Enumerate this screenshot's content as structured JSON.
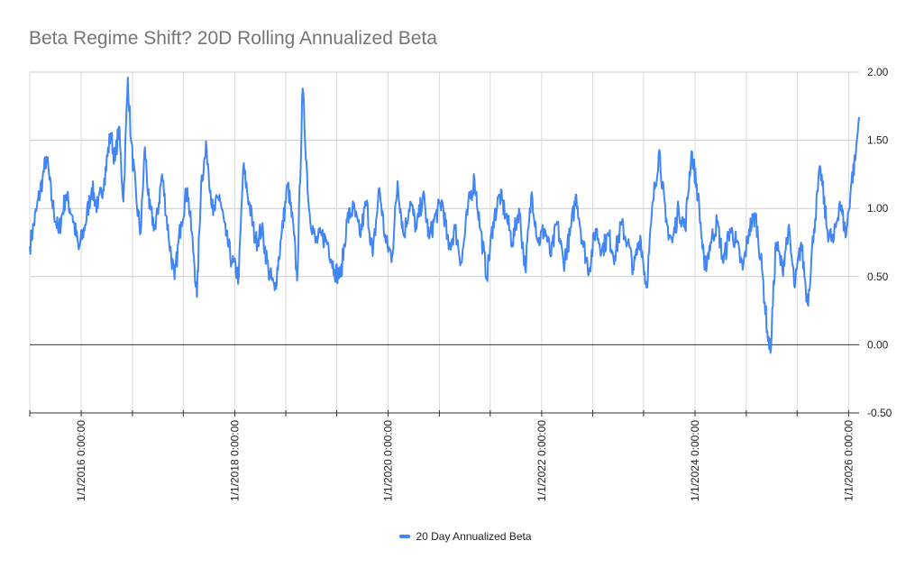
{
  "chart_data": {
    "type": "line",
    "title": "Beta Regime Shift? 20D Rolling Annualized Beta",
    "xlabel": "",
    "ylabel": "",
    "ylim": [
      -0.5,
      2.0
    ],
    "xlim": [
      "2015-05-01",
      "2026-02-20"
    ],
    "y_ticks": [
      "2.00",
      "1.50",
      "1.00",
      "0.50",
      "0.00",
      "-0.50"
    ],
    "y_tick_values": [
      2.0,
      1.5,
      1.0,
      0.5,
      0.0,
      -0.5
    ],
    "x_tick_labels": [
      "1/1/2016 0:00:00",
      "1/1/2018 0:00:00",
      "1/1/2020 0:00:00",
      "1/1/2022 0:00:00",
      "1/1/2024 0:00:00",
      "1/1/2026 0:00:00"
    ],
    "x_tick_dates": [
      "2016-01-01",
      "2018-01-01",
      "2020-01-01",
      "2022-01-01",
      "2024-01-01",
      "2026-01-01"
    ],
    "x_minor_ticks": [
      "2015-05-01",
      "2016-01-01",
      "2016-09-01",
      "2017-05-01",
      "2018-01-01",
      "2018-09-01",
      "2019-05-01",
      "2020-01-01",
      "2020-09-01",
      "2021-05-01",
      "2022-01-01",
      "2022-09-01",
      "2023-05-01",
      "2024-01-01",
      "2024-09-01",
      "2025-05-01",
      "2026-01-01"
    ],
    "grid": true,
    "legend_position": "bottom",
    "series": [
      {
        "name": "20 Day Annualized Beta",
        "color": "#4285f4",
        "points": [
          [
            "2015-05-01",
            0.72
          ],
          [
            "2015-06-01",
            0.98
          ],
          [
            "2015-07-01",
            1.22
          ],
          [
            "2015-07-20",
            1.38
          ],
          [
            "2015-08-15",
            1.05
          ],
          [
            "2015-09-15",
            0.82
          ],
          [
            "2015-10-20",
            1.1
          ],
          [
            "2015-11-20",
            0.95
          ],
          [
            "2015-12-20",
            0.7
          ],
          [
            "2016-01-20",
            0.88
          ],
          [
            "2016-02-20",
            1.15
          ],
          [
            "2016-03-20",
            1.0
          ],
          [
            "2016-04-20",
            1.22
          ],
          [
            "2016-05-20",
            1.55
          ],
          [
            "2016-06-10",
            1.35
          ],
          [
            "2016-06-28",
            1.6
          ],
          [
            "2016-07-20",
            1.05
          ],
          [
            "2016-08-10",
            1.96
          ],
          [
            "2016-08-25",
            1.5
          ],
          [
            "2016-09-20",
            1.05
          ],
          [
            "2016-10-10",
            0.82
          ],
          [
            "2016-10-30",
            1.45
          ],
          [
            "2016-11-20",
            1.0
          ],
          [
            "2016-12-20",
            0.85
          ],
          [
            "2017-01-20",
            1.25
          ],
          [
            "2017-02-20",
            0.8
          ],
          [
            "2017-03-20",
            0.48
          ],
          [
            "2017-04-20",
            0.9
          ],
          [
            "2017-05-20",
            1.15
          ],
          [
            "2017-06-20",
            0.65
          ],
          [
            "2017-07-05",
            0.35
          ],
          [
            "2017-07-25",
            1.2
          ],
          [
            "2017-08-20",
            1.44
          ],
          [
            "2017-09-20",
            0.95
          ],
          [
            "2017-10-20",
            1.1
          ],
          [
            "2017-11-20",
            0.8
          ],
          [
            "2017-12-20",
            0.6
          ],
          [
            "2018-01-20",
            0.5
          ],
          [
            "2018-02-10",
            1.3
          ],
          [
            "2018-03-10",
            1.05
          ],
          [
            "2018-04-10",
            0.75
          ],
          [
            "2018-05-10",
            0.85
          ],
          [
            "2018-06-10",
            0.55
          ],
          [
            "2018-07-10",
            0.4
          ],
          [
            "2018-08-10",
            0.78
          ],
          [
            "2018-09-10",
            1.18
          ],
          [
            "2018-10-10",
            0.8
          ],
          [
            "2018-10-25",
            0.47
          ],
          [
            "2018-11-20",
            1.88
          ],
          [
            "2018-12-20",
            1.0
          ],
          [
            "2019-01-20",
            0.75
          ],
          [
            "2019-02-20",
            0.8
          ],
          [
            "2019-03-20",
            0.75
          ],
          [
            "2019-04-20",
            0.55
          ],
          [
            "2019-05-20",
            0.5
          ],
          [
            "2019-06-20",
            0.92
          ],
          [
            "2019-07-20",
            1.0
          ],
          [
            "2019-08-20",
            0.8
          ],
          [
            "2019-09-20",
            1.05
          ],
          [
            "2019-10-20",
            0.65
          ],
          [
            "2019-11-20",
            1.15
          ],
          [
            "2019-12-20",
            0.75
          ],
          [
            "2020-01-20",
            0.65
          ],
          [
            "2020-02-15",
            1.2
          ],
          [
            "2020-03-15",
            0.8
          ],
          [
            "2020-04-15",
            1.05
          ],
          [
            "2020-05-15",
            0.85
          ],
          [
            "2020-06-15",
            1.1
          ],
          [
            "2020-07-15",
            0.78
          ],
          [
            "2020-08-15",
            0.95
          ],
          [
            "2020-09-15",
            1.05
          ],
          [
            "2020-10-15",
            0.7
          ],
          [
            "2020-11-15",
            0.85
          ],
          [
            "2020-12-15",
            0.6
          ],
          [
            "2021-01-15",
            1.0
          ],
          [
            "2021-02-15",
            1.22
          ],
          [
            "2021-03-15",
            0.85
          ],
          [
            "2021-04-15",
            0.5
          ],
          [
            "2021-05-15",
            0.9
          ],
          [
            "2021-06-15",
            1.1
          ],
          [
            "2021-07-15",
            0.95
          ],
          [
            "2021-08-15",
            0.75
          ],
          [
            "2021-09-15",
            1.0
          ],
          [
            "2021-10-15",
            0.55
          ],
          [
            "2021-11-15",
            1.12
          ],
          [
            "2021-12-15",
            0.75
          ],
          [
            "2022-01-15",
            0.85
          ],
          [
            "2022-02-15",
            0.65
          ],
          [
            "2022-03-15",
            0.9
          ],
          [
            "2022-04-15",
            0.6
          ],
          [
            "2022-05-15",
            0.8
          ],
          [
            "2022-06-15",
            1.1
          ],
          [
            "2022-07-15",
            0.75
          ],
          [
            "2022-08-15",
            0.55
          ],
          [
            "2022-09-15",
            0.85
          ],
          [
            "2022-10-15",
            0.7
          ],
          [
            "2022-11-15",
            0.8
          ],
          [
            "2022-12-15",
            0.65
          ],
          [
            "2023-01-15",
            0.88
          ],
          [
            "2023-02-15",
            0.75
          ],
          [
            "2023-03-15",
            0.55
          ],
          [
            "2023-04-15",
            0.8
          ],
          [
            "2023-05-15",
            0.42
          ],
          [
            "2023-06-15",
            1.05
          ],
          [
            "2023-07-15",
            1.43
          ],
          [
            "2023-08-15",
            0.9
          ],
          [
            "2023-09-15",
            0.75
          ],
          [
            "2023-10-15",
            1.0
          ],
          [
            "2023-11-15",
            0.85
          ],
          [
            "2023-12-15",
            1.42
          ],
          [
            "2024-01-15",
            1.1
          ],
          [
            "2024-02-15",
            0.55
          ],
          [
            "2024-03-15",
            0.75
          ],
          [
            "2024-04-15",
            0.9
          ],
          [
            "2024-05-15",
            0.6
          ],
          [
            "2024-06-15",
            0.85
          ],
          [
            "2024-07-15",
            0.75
          ],
          [
            "2024-08-15",
            0.55
          ],
          [
            "2024-09-15",
            0.85
          ],
          [
            "2024-10-15",
            0.95
          ],
          [
            "2024-11-15",
            0.55
          ],
          [
            "2024-12-10",
            0.1
          ],
          [
            "2024-12-25",
            -0.06
          ],
          [
            "2025-01-20",
            0.75
          ],
          [
            "2025-02-20",
            0.55
          ],
          [
            "2025-03-20",
            0.85
          ],
          [
            "2025-04-20",
            0.42
          ],
          [
            "2025-05-20",
            0.75
          ],
          [
            "2025-06-20",
            0.3
          ],
          [
            "2025-07-20",
            0.85
          ],
          [
            "2025-08-20",
            1.3
          ],
          [
            "2025-09-20",
            0.85
          ],
          [
            "2025-10-20",
            0.75
          ],
          [
            "2025-11-20",
            1.05
          ],
          [
            "2025-12-20",
            0.8
          ],
          [
            "2026-01-15",
            1.2
          ],
          [
            "2026-02-01",
            1.35
          ],
          [
            "2026-02-20",
            1.67
          ]
        ]
      }
    ]
  }
}
